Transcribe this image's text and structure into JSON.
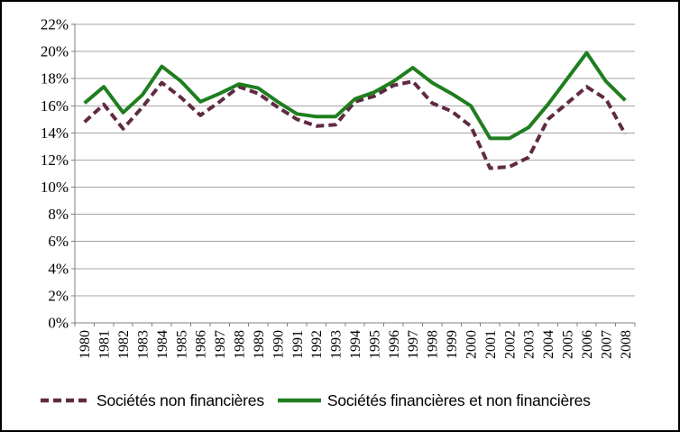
{
  "chart_data": {
    "type": "line",
    "title": "",
    "xlabel": "",
    "ylabel": "",
    "categories": [
      "1980",
      "1981",
      "1982",
      "1983",
      "1984",
      "1985",
      "1986",
      "1987",
      "1988",
      "1989",
      "1990",
      "1991",
      "1992",
      "1993",
      "1994",
      "1995",
      "1996",
      "1997",
      "1998",
      "1999",
      "2000",
      "2001",
      "2002",
      "2003",
      "2004",
      "2005",
      "2006",
      "2007",
      "2008"
    ],
    "series": [
      {
        "name": "Sociétés non financières",
        "style": "dashed",
        "color": "#602a43",
        "values": [
          14.8,
          16.1,
          14.3,
          15.9,
          17.7,
          16.6,
          15.3,
          16.3,
          17.4,
          16.9,
          15.9,
          15.0,
          14.5,
          14.6,
          16.3,
          16.7,
          17.5,
          17.8,
          16.2,
          15.6,
          14.5,
          11.4,
          11.5,
          12.2,
          15.0,
          16.2,
          17.4,
          16.5,
          13.9
        ]
      },
      {
        "name": "Sociétés financières et non financières",
        "style": "solid",
        "color": "#1f7e1f",
        "values": [
          16.2,
          17.4,
          15.5,
          16.8,
          18.9,
          17.8,
          16.3,
          16.9,
          17.6,
          17.3,
          16.3,
          15.4,
          15.2,
          15.2,
          16.5,
          17.0,
          17.8,
          18.8,
          17.7,
          16.9,
          16.0,
          13.6,
          13.6,
          14.4,
          16.1,
          18.0,
          19.9,
          17.8,
          16.4
        ]
      }
    ],
    "ylim": [
      0,
      22
    ],
    "y_tick_step": 2,
    "y_tick_labels": [
      "0%",
      "2%",
      "4%",
      "6%",
      "8%",
      "10%",
      "12%",
      "14%",
      "16%",
      "18%",
      "20%",
      "22%"
    ],
    "grid": "horizontal",
    "grid_color": "#a6a6a6",
    "axis_color": "#808080",
    "legend_position": "bottom",
    "x_labels_rotated": true
  }
}
